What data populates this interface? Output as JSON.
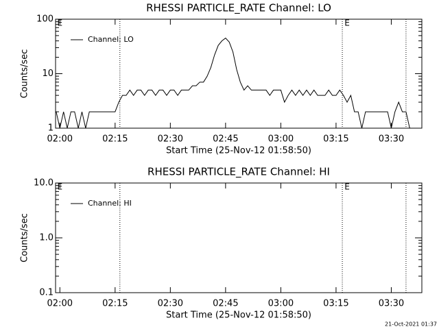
{
  "chart_data": [
    {
      "type": "line",
      "title": "RHESSI PARTICLE_RATE Channel: LO",
      "xlabel": "Start Time (25-Nov-12 01:58:50)",
      "ylabel": "Counts/sec",
      "log_y": true,
      "legend": "upper left",
      "x": [
        119,
        120,
        121,
        122,
        123,
        124,
        125,
        126,
        127,
        128,
        129,
        130,
        131,
        132,
        133,
        134,
        135,
        136,
        137,
        138,
        139,
        140,
        141,
        142,
        143,
        144,
        145,
        146,
        147,
        148,
        149,
        150,
        151,
        152,
        153,
        154,
        155,
        156,
        157,
        158,
        159,
        160,
        161,
        162,
        163,
        164,
        165,
        166,
        167,
        168,
        169,
        170,
        171,
        172,
        173,
        174,
        175,
        176,
        177,
        178,
        179,
        180,
        181,
        182,
        183,
        184,
        185,
        186,
        187,
        188,
        189,
        190,
        191,
        192,
        193,
        194,
        195,
        196,
        197,
        198,
        199,
        200,
        201,
        202,
        203,
        204,
        205,
        206,
        207,
        208,
        209,
        210,
        211,
        212,
        213,
        214,
        215
      ],
      "series": [
        {
          "name": "Channel: LO",
          "color": "#000000",
          "values": [
            2,
            1,
            2,
            1,
            2,
            2,
            1,
            2,
            1,
            2,
            2,
            2,
            2,
            2,
            2,
            2,
            2,
            3,
            4,
            4,
            5,
            4,
            5,
            5,
            4,
            5,
            5,
            4,
            5,
            5,
            4,
            5,
            5,
            4,
            5,
            5,
            5,
            6,
            6,
            7,
            7,
            9,
            13,
            22,
            33,
            40,
            45,
            38,
            25,
            12,
            7,
            5,
            6,
            5,
            5,
            5,
            5,
            5,
            4,
            5,
            5,
            5,
            3,
            4,
            5,
            4,
            5,
            4,
            5,
            4,
            5,
            4,
            4,
            4,
            5,
            4,
            4,
            5,
            4,
            3,
            4,
            2,
            2,
            1,
            2,
            2,
            2,
            2,
            2,
            2,
            2,
            1,
            2,
            3,
            2,
            2,
            1
          ]
        }
      ],
      "xlim": [
        118.83,
        218.3
      ],
      "xticks": [
        {
          "value": 120,
          "label": "02:00"
        },
        {
          "value": 135,
          "label": "02:15"
        },
        {
          "value": 150,
          "label": "02:30"
        },
        {
          "value": 165,
          "label": "02:45"
        },
        {
          "value": 180,
          "label": "03:00"
        },
        {
          "value": 195,
          "label": "03:15"
        },
        {
          "value": 210,
          "label": "03:30"
        }
      ],
      "ylim": [
        1,
        100
      ],
      "yticks": [
        1,
        10,
        100
      ],
      "vlines": [
        136.3,
        196.7,
        214.0
      ],
      "annotations": [
        {
          "text": "E",
          "x": 119.3
        },
        {
          "text": "E",
          "x": 197.3
        }
      ]
    },
    {
      "type": "line",
      "title": "RHESSI PARTICLE_RATE Channel: HI",
      "xlabel": "Start Time (25-Nov-12 01:58:50)",
      "ylabel": "Counts/sec",
      "log_y": true,
      "legend": "upper left",
      "x": [],
      "series": [
        {
          "name": "Channel: HI",
          "color": "#000000",
          "values": []
        }
      ],
      "xlim": [
        118.83,
        218.3
      ],
      "xticks": [
        {
          "value": 120,
          "label": "02:00"
        },
        {
          "value": 135,
          "label": "02:15"
        },
        {
          "value": 150,
          "label": "02:30"
        },
        {
          "value": 165,
          "label": "02:45"
        },
        {
          "value": 180,
          "label": "03:00"
        },
        {
          "value": 195,
          "label": "03:15"
        },
        {
          "value": 210,
          "label": "03:30"
        }
      ],
      "ylim": [
        0.1,
        10
      ],
      "yticks": [
        0.1,
        {
          "value": 1,
          "label": "1.0"
        },
        {
          "value": 10,
          "label": "10.0"
        }
      ],
      "vlines": [
        136.3,
        196.7,
        214.0
      ],
      "annotations": [
        {
          "text": "E",
          "x": 119.3
        },
        {
          "text": "E",
          "x": 197.3
        }
      ]
    }
  ],
  "footer": "21-Oct-2021 01:37"
}
